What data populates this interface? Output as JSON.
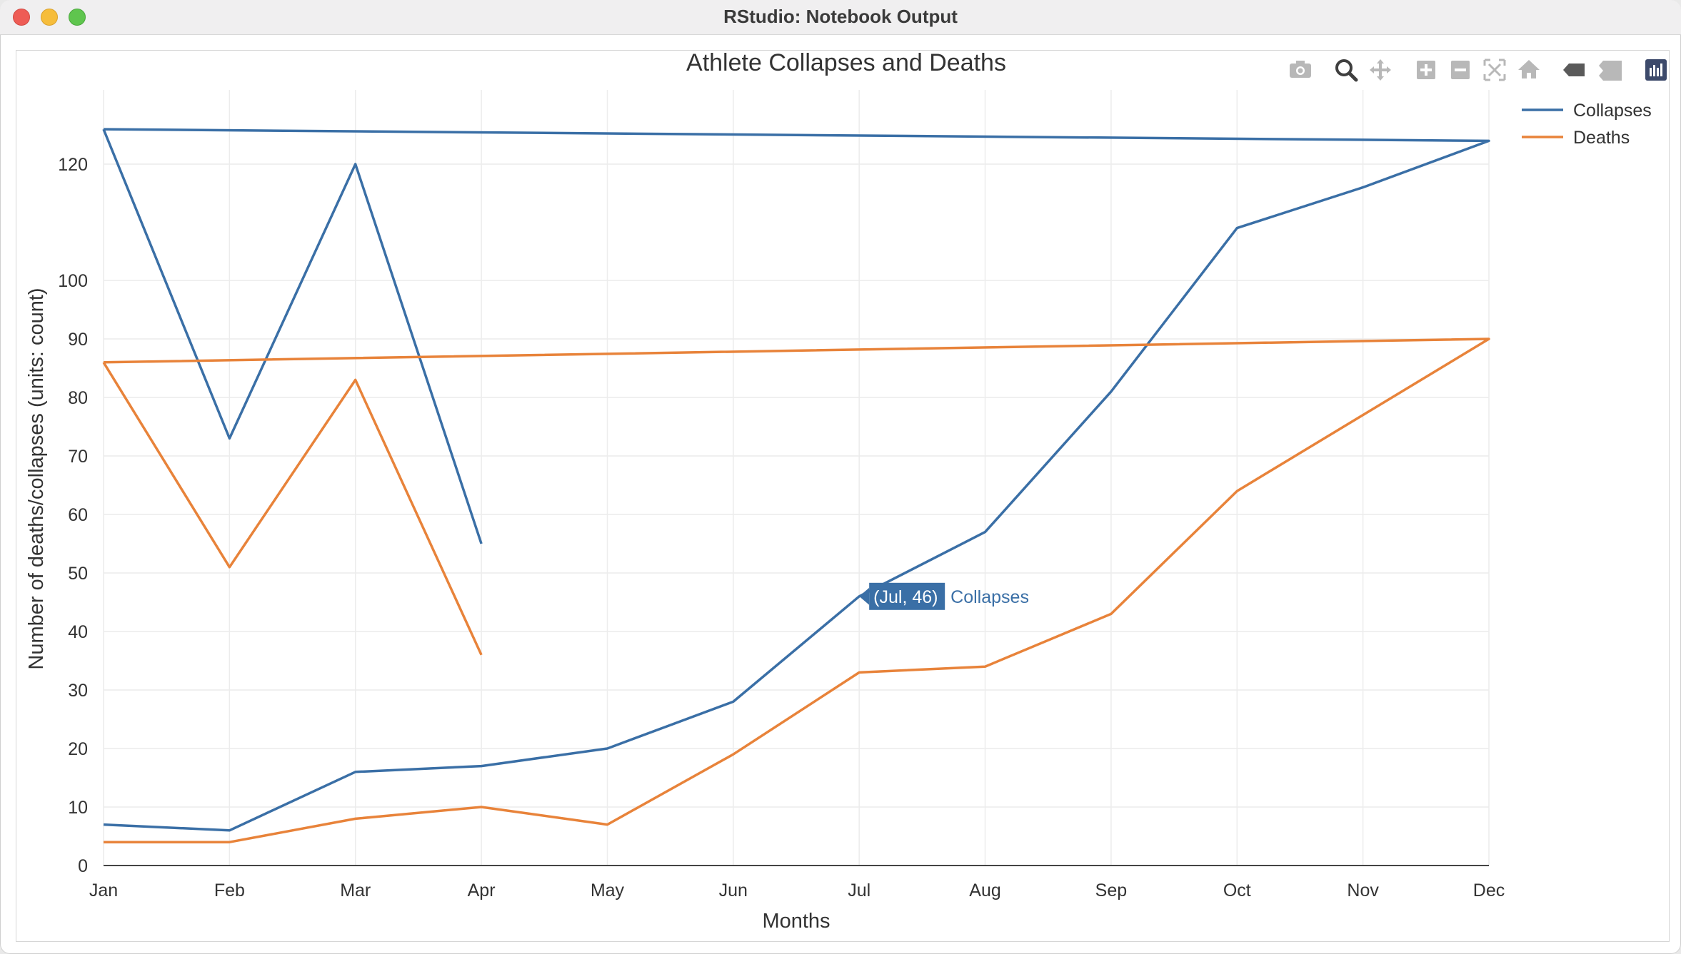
{
  "window": {
    "title": "RStudio: Notebook Output"
  },
  "modebar": {
    "icons": [
      "camera-icon",
      "zoom-icon",
      "pan-icon",
      "zoom-in-icon",
      "zoom-out-icon",
      "autoscale-icon",
      "home-icon",
      "hover-closest-icon",
      "hover-compare-icon",
      "plotly-logo-icon"
    ]
  },
  "tooltip": {
    "text": "(Jul, 46)",
    "series": "Collapses",
    "color": "#3a6fa6"
  },
  "chart_data": {
    "type": "line",
    "title": "Athlete Collapses and Deaths",
    "xlabel": "Months",
    "ylabel": "Number of deaths/collapses (units: count)",
    "categories": [
      "Jan",
      "Feb",
      "Mar",
      "Apr",
      "May",
      "Jun",
      "Jul",
      "Aug",
      "Sep",
      "Oct",
      "Nov",
      "Dec"
    ],
    "y_ticks": [
      0,
      10,
      20,
      30,
      40,
      50,
      60,
      70,
      80,
      90,
      100,
      120
    ],
    "ylim": [
      0,
      126
    ],
    "grid": true,
    "legend_position": "top-right",
    "series": [
      {
        "name": "Collapses",
        "color": "#3a6fa6",
        "points": [
          [
            "Jan",
            126
          ],
          [
            "Feb",
            73
          ],
          [
            "Mar",
            120
          ],
          [
            "Apr",
            55
          ],
          [
            "Apr",
            55
          ],
          [
            "Jan",
            7
          ],
          [
            "Feb",
            6
          ],
          [
            "Mar",
            16
          ],
          [
            "Apr",
            17
          ],
          [
            "May",
            20
          ],
          [
            "Jun",
            28
          ],
          [
            "Jul",
            46
          ],
          [
            "Aug",
            57
          ],
          [
            "Sep",
            81
          ],
          [
            "Oct",
            109
          ],
          [
            "Nov",
            116
          ],
          [
            "Dec",
            124
          ],
          [
            "Jan",
            126
          ]
        ],
        "segments": [
          [
            [
              "Jan",
              126
            ],
            [
              "Feb",
              73
            ],
            [
              "Mar",
              120
            ],
            [
              "Apr",
              55
            ]
          ],
          [
            [
              "Jan",
              7
            ],
            [
              "Feb",
              6
            ],
            [
              "Mar",
              16
            ],
            [
              "Apr",
              17
            ],
            [
              "May",
              20
            ],
            [
              "Jun",
              28
            ],
            [
              "Jul",
              46
            ],
            [
              "Aug",
              57
            ],
            [
              "Sep",
              81
            ],
            [
              "Oct",
              109
            ],
            [
              "Nov",
              116
            ],
            [
              "Dec",
              124
            ],
            [
              "Jan",
              126
            ]
          ]
        ]
      },
      {
        "name": "Deaths",
        "color": "#e8833a",
        "segments": [
          [
            [
              "Jan",
              86
            ],
            [
              "Feb",
              51
            ],
            [
              "Mar",
              83
            ],
            [
              "Apr",
              36
            ]
          ],
          [
            [
              "Jan",
              4
            ],
            [
              "Feb",
              4
            ],
            [
              "Mar",
              8
            ],
            [
              "Apr",
              10
            ],
            [
              "May",
              7
            ],
            [
              "Jun",
              19
            ],
            [
              "Jul",
              33
            ],
            [
              "Aug",
              34
            ],
            [
              "Sep",
              43
            ],
            [
              "Oct",
              64
            ],
            [
              "Nov",
              77
            ],
            [
              "Dec",
              90
            ],
            [
              "Jan",
              86
            ]
          ]
        ]
      }
    ]
  }
}
